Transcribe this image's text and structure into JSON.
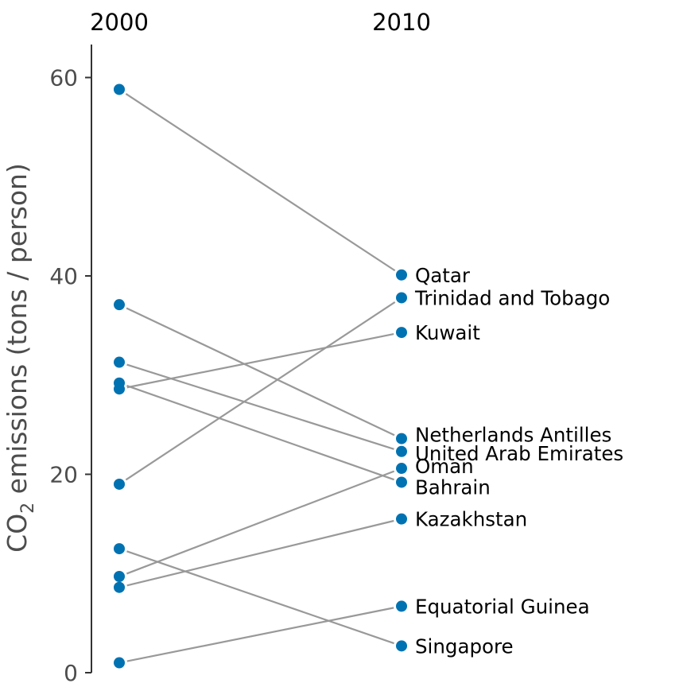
{
  "chart_data": {
    "type": "line",
    "subtype": "slopegraph",
    "ylabel_main": "CO",
    "ylabel_sub": "2",
    "ylabel_rest": " emissions (tons / person)",
    "x": [
      "2000",
      "2010"
    ],
    "ylim": [
      0,
      63
    ],
    "yticks": [
      0,
      20,
      40,
      60
    ],
    "grid": false,
    "line_color": "#999999",
    "point_color": "#0072b2",
    "series": [
      {
        "name": "Qatar",
        "values": [
          58.8,
          40.1
        ]
      },
      {
        "name": "Trinidad and Tobago",
        "values": [
          19.0,
          37.8
        ]
      },
      {
        "name": "Kuwait",
        "values": [
          28.6,
          34.3
        ]
      },
      {
        "name": "Netherlands Antilles",
        "values": [
          37.1,
          23.6
        ]
      },
      {
        "name": "United Arab Emirates",
        "values": [
          31.3,
          22.3
        ]
      },
      {
        "name": "Oman",
        "values": [
          9.7,
          20.6
        ]
      },
      {
        "name": "Bahrain",
        "values": [
          29.2,
          19.2
        ]
      },
      {
        "name": "Kazakhstan",
        "values": [
          8.6,
          15.5
        ]
      },
      {
        "name": "Equatorial Guinea",
        "values": [
          1.0,
          6.7
        ]
      },
      {
        "name": "Singapore",
        "values": [
          12.5,
          2.7
        ]
      }
    ]
  }
}
